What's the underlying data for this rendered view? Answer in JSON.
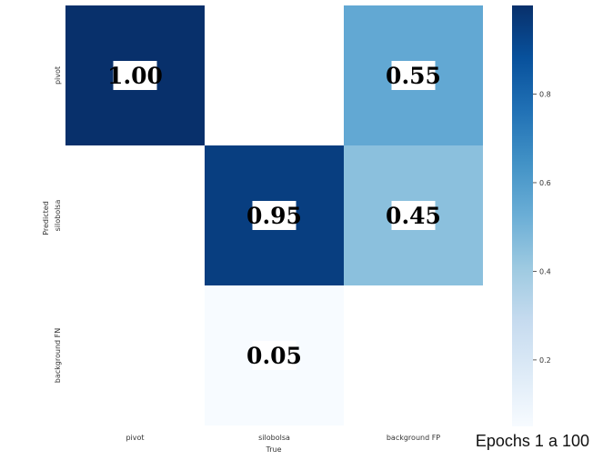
{
  "chart_data": {
    "type": "heatmap",
    "x_labels": [
      "pivot",
      "silobolsa",
      "background FP"
    ],
    "y_labels": [
      "pivot",
      "silobolsa",
      "background FN"
    ],
    "xlabel": "True",
    "ylabel": "Predicted",
    "values": [
      [
        1.0,
        null,
        0.55
      ],
      [
        null,
        0.95,
        0.45
      ],
      [
        null,
        0.05,
        null
      ]
    ],
    "value_labels": [
      [
        "1.00",
        "",
        "0.55"
      ],
      [
        "",
        "0.95",
        "0.45"
      ],
      [
        "",
        "0.05",
        ""
      ]
    ],
    "colorbar": {
      "colormap": "Blues",
      "min": 0.05,
      "max": 1.0,
      "ticks": [
        0.2,
        0.4,
        0.6,
        0.8
      ],
      "tick_labels": [
        "0.2",
        "0.4",
        "0.6",
        "0.8"
      ]
    }
  },
  "annotation": "Epochs 1 a 100"
}
